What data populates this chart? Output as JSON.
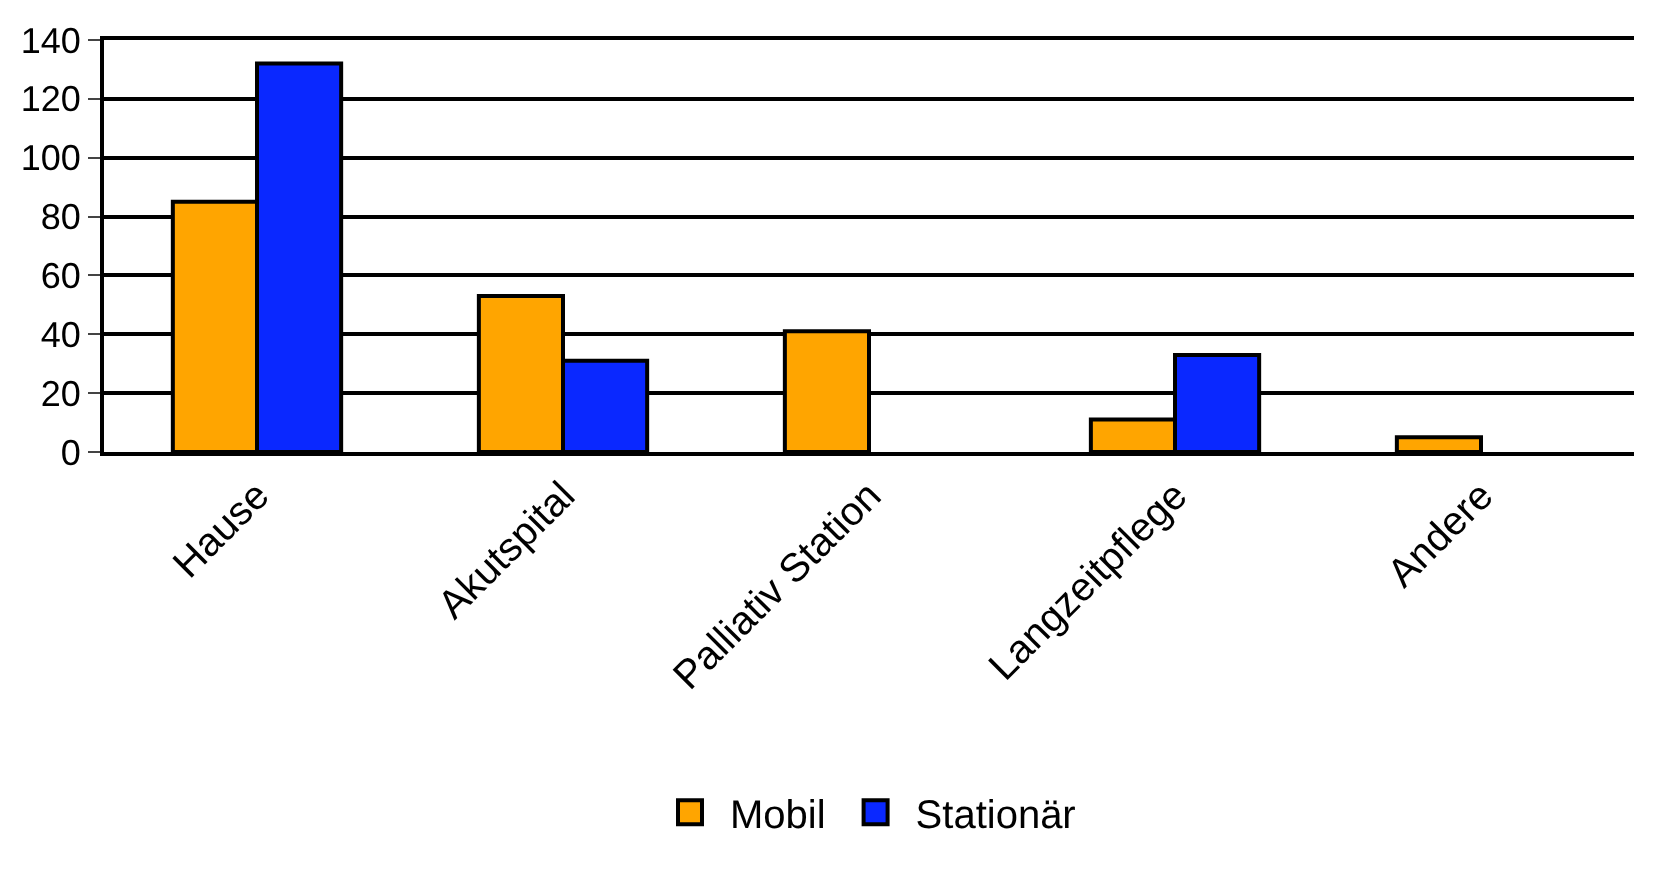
{
  "chart_data": {
    "type": "bar",
    "categories": [
      "Hause",
      "Akutspital",
      "Palliativ Station",
      "Langzeitpflege",
      "Andere"
    ],
    "series": [
      {
        "name": "Mobil",
        "color": "#ffa500",
        "values": [
          85,
          53,
          41,
          11,
          5
        ]
      },
      {
        "name": "Stationär",
        "color": "#0a28ff",
        "values": [
          132,
          31,
          null,
          33,
          null
        ]
      }
    ],
    "ylim": [
      0,
      140
    ],
    "yticks": [
      0,
      20,
      40,
      60,
      80,
      100,
      120,
      140
    ],
    "grid": "y",
    "legend": "bottom"
  }
}
